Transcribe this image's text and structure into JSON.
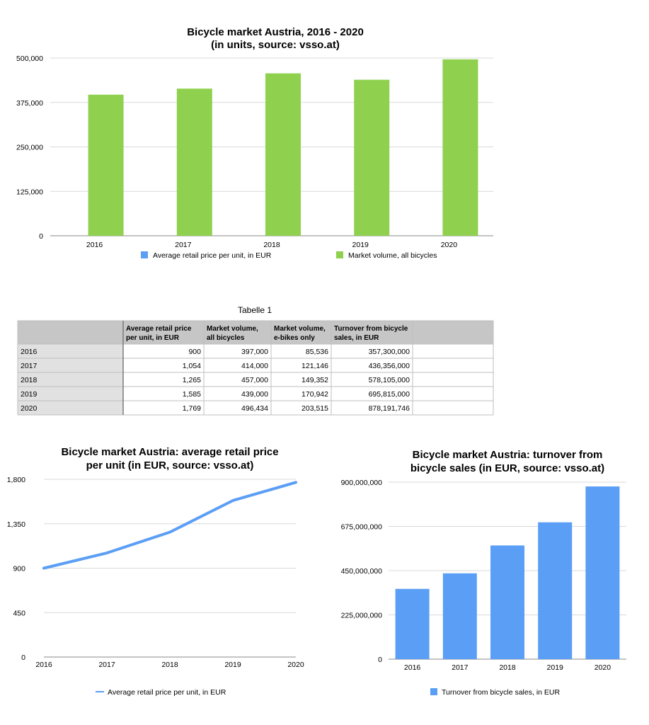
{
  "chart_data": [
    {
      "type": "bar",
      "title": "Bicycle market Austria, 2016 - 2020",
      "subtitle": "(in units, source: vsso.at)",
      "categories": [
        "2016",
        "2017",
        "2018",
        "2019",
        "2020"
      ],
      "series": [
        {
          "name": "Average retail price per unit, in EUR",
          "values": [
            900,
            1054,
            1265,
            1585,
            1769
          ],
          "color": "#5b9ef5"
        },
        {
          "name": "Market volume, all bicycles",
          "values": [
            397000,
            414000,
            457000,
            439000,
            496434
          ],
          "color": "#8fd14f"
        }
      ],
      "yticks": [
        "0",
        "125,000",
        "250,000",
        "375,000",
        "500,000"
      ],
      "ylim": [
        0,
        500000
      ],
      "grid": true,
      "legend": "bottom"
    },
    {
      "type": "line",
      "title": "Bicycle market Austria: average retail price",
      "subtitle": "per unit (in EUR, source: vsso.at)",
      "x": [
        "2016",
        "2017",
        "2018",
        "2019",
        "2020"
      ],
      "series": [
        {
          "name": "Average retail price per unit, in EUR",
          "values": [
            900,
            1054,
            1265,
            1585,
            1769
          ],
          "color": "#5b9ef5"
        }
      ],
      "yticks": [
        "0",
        "450",
        "900",
        "1,350",
        "1,800"
      ],
      "ylim": [
        0,
        1800
      ],
      "grid": true,
      "legend": "bottom"
    },
    {
      "type": "bar",
      "title": "Bicycle market Austria: turnover from",
      "subtitle": "bicycle sales (in EUR, source: vsso.at)",
      "categories": [
        "2016",
        "2017",
        "2018",
        "2019",
        "2020"
      ],
      "series": [
        {
          "name": "Turnover from bicycle sales, in EUR",
          "values": [
            357300000,
            436356000,
            578105000,
            695815000,
            878191746
          ],
          "color": "#5b9ef5"
        }
      ],
      "yticks": [
        "0",
        "225,000,000",
        "450,000,000",
        "675,000,000",
        "900,000,000"
      ],
      "ylim": [
        0,
        900000000
      ],
      "grid": true,
      "legend": "bottom"
    }
  ],
  "table": {
    "title": "Tabelle 1",
    "headers": [
      [
        "",
        ""
      ],
      [
        "Average retail price",
        "per unit, in EUR"
      ],
      [
        "Market volume,",
        "all bicycles"
      ],
      [
        "Market volume,",
        "e-bikes only"
      ],
      [
        "Turnover from bicycle",
        "sales, in EUR"
      ]
    ],
    "rows": [
      [
        "2016",
        "900",
        "397,000",
        "85,536",
        "357,300,000"
      ],
      [
        "2017",
        "1,054",
        "414,000",
        "121,146",
        "436,356,000"
      ],
      [
        "2018",
        "1,265",
        "457,000",
        "149,352",
        "578,105,000"
      ],
      [
        "2019",
        "1,585",
        "439,000",
        "170,942",
        "695,815,000"
      ],
      [
        "2020",
        "1,769",
        "496,434",
        "203,515",
        "878,191,746"
      ]
    ]
  }
}
